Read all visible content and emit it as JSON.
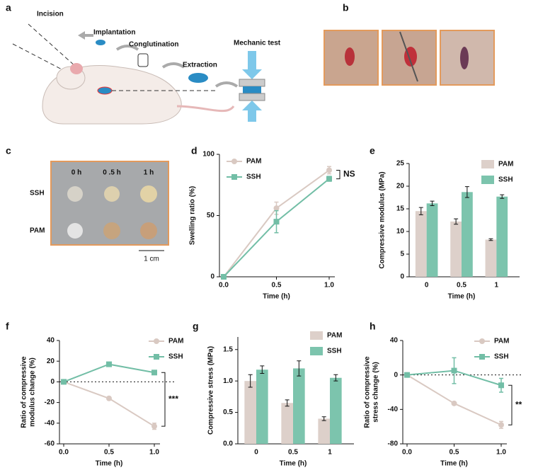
{
  "illustration": {
    "label": "a",
    "steps": [
      "Incision",
      "Implantation",
      "Conglutination",
      "Extraction",
      "Mechanic test"
    ]
  },
  "photos": {
    "label": "b"
  },
  "photo_grid": {
    "label": "c",
    "columns": [
      "0 h",
      "0 .5 h",
      "1 h"
    ],
    "rows": [
      "SSH",
      "PAM"
    ],
    "scale_bar": "1 cm"
  },
  "chart_data": [
    {
      "panel": "d",
      "type": "line",
      "x": [
        0,
        0.5,
        1.0
      ],
      "series": [
        {
          "name": "PAM",
          "color": "#d9c9c2",
          "marker": "circle",
          "values": [
            0,
            56,
            87
          ],
          "errors": [
            0,
            5,
            3
          ]
        },
        {
          "name": "SSH",
          "color": "#72bea6",
          "marker": "square",
          "values": [
            0,
            45,
            80
          ],
          "errors": [
            0,
            9,
            2
          ]
        }
      ],
      "xlim": [
        0,
        1.0
      ],
      "xticks": [
        {
          "value": 0,
          "label": "0.0"
        },
        0.5,
        {
          "value": 1.0,
          "label": "1.0"
        }
      ],
      "ylim": [
        0,
        100
      ],
      "yticks": [
        0,
        50,
        100
      ],
      "x_label": "Time (h)",
      "y_label": [
        "Swelling ratio (%)"
      ],
      "annotation": "NS",
      "zero_line": false
    },
    {
      "panel": "e",
      "type": "bar",
      "categories": [
        "0",
        "0.5",
        "1"
      ],
      "series": [
        {
          "name": "PAM",
          "color": "#ddd0ca",
          "values": [
            14.5,
            12.2,
            8.2
          ],
          "errors": [
            0.8,
            0.6,
            0.2
          ]
        },
        {
          "name": "SSH",
          "color": "#7cc4ad",
          "values": [
            16.2,
            18.7,
            17.7
          ],
          "errors": [
            0.5,
            1.2,
            0.4
          ]
        }
      ],
      "ylim": [
        0,
        25
      ],
      "yticks": [
        0,
        5,
        10,
        15,
        20,
        25
      ],
      "x_label": "Time (h)",
      "y_label": [
        "Compressive modulus (MPa)"
      ]
    },
    {
      "panel": "f",
      "type": "line",
      "x": [
        0,
        0.5,
        1.0
      ],
      "series": [
        {
          "name": "PAM",
          "color": "#d9c9c2",
          "marker": "circle",
          "values": [
            0,
            -16,
            -43
          ],
          "errors": [
            0,
            1,
            3
          ]
        },
        {
          "name": "SSH",
          "color": "#72bea6",
          "marker": "square",
          "values": [
            0,
            17,
            9
          ],
          "errors": [
            0,
            1,
            1
          ]
        }
      ],
      "xlim": [
        0,
        1.0
      ],
      "xticks": [
        {
          "value": 0,
          "label": "0.0"
        },
        0.5,
        {
          "value": 1.0,
          "label": "1.0"
        }
      ],
      "ylim": [
        -60,
        40
      ],
      "yticks": [
        -60,
        -40,
        -20,
        0,
        20,
        40
      ],
      "x_label": "Time (h)",
      "y_label": [
        "Ratio of compressive",
        "modulus change (%)"
      ],
      "annotation": "***",
      "zero_line": true
    },
    {
      "panel": "g",
      "type": "bar",
      "categories": [
        "0",
        "0.5",
        "1"
      ],
      "series": [
        {
          "name": "PAM",
          "color": "#ddd0ca",
          "values": [
            1.0,
            0.65,
            0.4
          ],
          "errors": [
            0.1,
            0.05,
            0.03
          ]
        },
        {
          "name": "SSH",
          "color": "#7cc4ad",
          "values": [
            1.18,
            1.2,
            1.05
          ],
          "errors": [
            0.06,
            0.12,
            0.05
          ]
        }
      ],
      "ylim": [
        0,
        1.7
      ],
      "yticks": [
        {
          "value": 0,
          "label": "0.0"
        },
        0.5,
        {
          "value": 1.0,
          "label": "1.0"
        },
        1.5
      ],
      "x_label": "Time (h)",
      "y_label": [
        "Compressive stress (MPa)"
      ]
    },
    {
      "panel": "h",
      "type": "line",
      "x": [
        0,
        0.5,
        1.0
      ],
      "series": [
        {
          "name": "PAM",
          "color": "#d9c9c2",
          "marker": "circle",
          "values": [
            0,
            -33,
            -58
          ],
          "errors": [
            0,
            1,
            4
          ]
        },
        {
          "name": "SSH",
          "color": "#72bea6",
          "marker": "square",
          "values": [
            0,
            5,
            -12
          ],
          "errors": [
            0,
            15,
            8
          ]
        }
      ],
      "xlim": [
        0,
        1.0
      ],
      "xticks": [
        {
          "value": 0,
          "label": "0.0"
        },
        0.5,
        {
          "value": 1.0,
          "label": "1.0"
        }
      ],
      "ylim": [
        -80,
        40
      ],
      "yticks": [
        -80,
        -40,
        0,
        40
      ],
      "x_label": "Time (h)",
      "y_label": [
        "Ratio of compressive",
        "stress change (%)"
      ],
      "annotation": "**",
      "zero_line": true
    }
  ]
}
